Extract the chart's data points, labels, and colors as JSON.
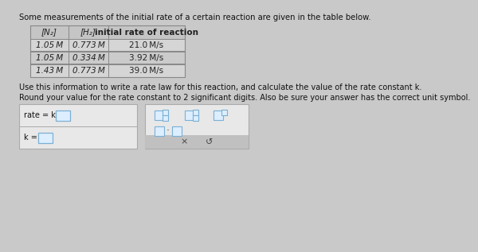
{
  "title": "Some measurements of the initial rate of a certain reaction are given in the table below.",
  "table_headers": [
    "[N₂]",
    "[H₂]",
    "initial rate of reaction"
  ],
  "table_rows": [
    [
      "1.05 M",
      "0.773 M",
      "21.0 M/s"
    ],
    [
      "1.05 M",
      "0.334 M",
      "3.92 M/s"
    ],
    [
      "1.43 M",
      "0.773 M",
      "39.0 M/s"
    ]
  ],
  "info_line1": "Use this information to write a rate law for this reaction, and calculate the value of the rate constant k.",
  "info_line2": "Round your value for the rate constant to 2 significant digits. Also be sure your answer has the correct unit symbol.",
  "rate_label": "rate = k ",
  "k_label": "k = ",
  "bg_color": "#c9c9c9",
  "table_header_bg": "#c5c5c5",
  "table_row_bg1": "#d5d5d5",
  "table_row_bg2": "#cbcbcb",
  "table_border": "#888888",
  "panel_bg": "#e8e8e8",
  "panel_border": "#aaaaaa",
  "input_box_border": "#7ab0d4",
  "input_box_fill": "#ddeeff",
  "btn_bar_bg": "#c0c0c0",
  "text_color": "#111111",
  "text_color_dark": "#222222",
  "font_size_title": 7.2,
  "font_size_table_header": 7.5,
  "font_size_table_row": 7.5,
  "font_size_info": 7.0,
  "font_size_answer": 7.0
}
